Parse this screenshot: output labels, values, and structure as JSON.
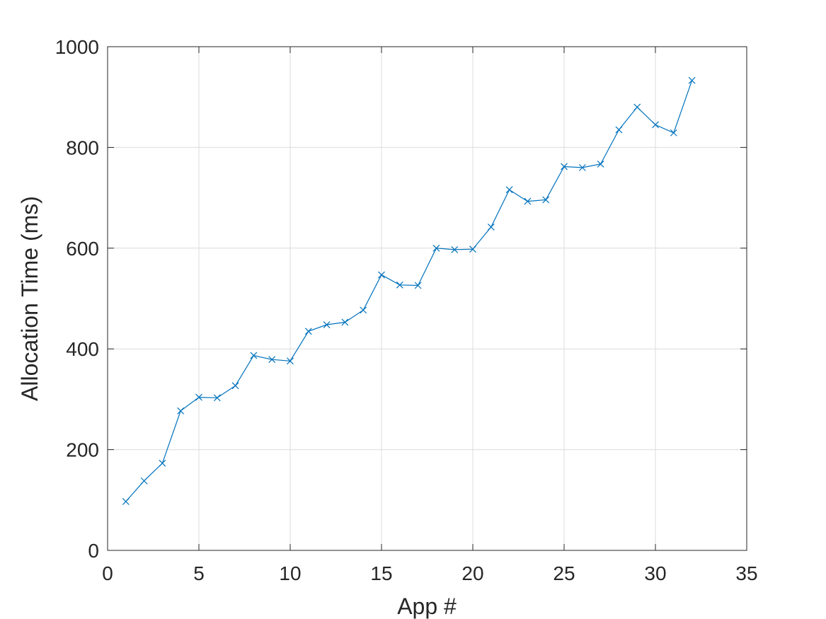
{
  "chart_data": {
    "type": "line",
    "xlabel": "App #",
    "ylabel": "Allocation Time (ms)",
    "xlim": [
      0,
      35
    ],
    "ylim": [
      0,
      1000
    ],
    "xticks": [
      0,
      5,
      10,
      15,
      20,
      25,
      30,
      35
    ],
    "yticks": [
      0,
      200,
      400,
      600,
      800,
      1000
    ],
    "grid": true,
    "marker": "x",
    "line_color": "#0072BD",
    "series": [
      {
        "x": [
          1,
          2,
          3,
          4,
          5,
          6,
          7,
          8,
          9,
          10,
          11,
          12,
          13,
          14,
          15,
          16,
          17,
          18,
          19,
          20,
          21,
          22,
          23,
          24,
          25,
          26,
          27,
          28,
          29,
          30,
          31,
          32
        ],
        "values": [
          97,
          138,
          173,
          277,
          304,
          303,
          327,
          387,
          379,
          376,
          435,
          448,
          453,
          477,
          547,
          527,
          526,
          600,
          597,
          598,
          642,
          716,
          693,
          696,
          762,
          760,
          767,
          835,
          880,
          845,
          829,
          933
        ]
      }
    ]
  }
}
